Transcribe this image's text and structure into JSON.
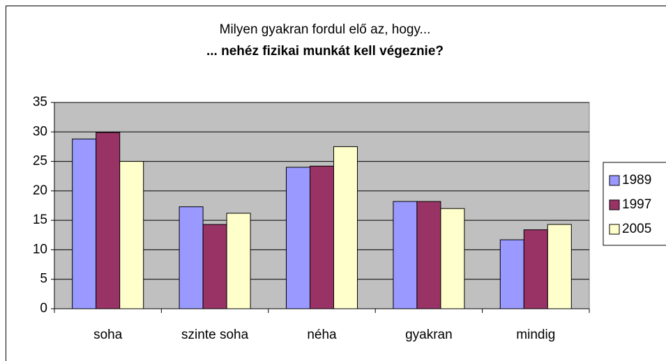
{
  "chart_data": {
    "type": "bar",
    "title": "Milyen gyakran fordul elő az, hogy...",
    "subtitle": "... nehéz fizikai munkát kell végeznie?",
    "categories": [
      "soha",
      "szinte soha",
      "néha",
      "gyakran",
      "mindig"
    ],
    "series": [
      {
        "name": "1989",
        "color": "#9999ff",
        "values": [
          28.8,
          17.3,
          24.0,
          18.2,
          11.7
        ]
      },
      {
        "name": "1997",
        "color": "#993366",
        "values": [
          29.9,
          14.3,
          24.2,
          18.2,
          13.4
        ]
      },
      {
        "name": "2005",
        "color": "#ffffcc",
        "values": [
          25.0,
          16.2,
          27.5,
          17.0,
          14.3
        ]
      }
    ],
    "ylim": [
      0,
      35
    ],
    "yticks": [
      0,
      5,
      10,
      15,
      20,
      25,
      30,
      35
    ],
    "grid": true,
    "legend": "right"
  }
}
